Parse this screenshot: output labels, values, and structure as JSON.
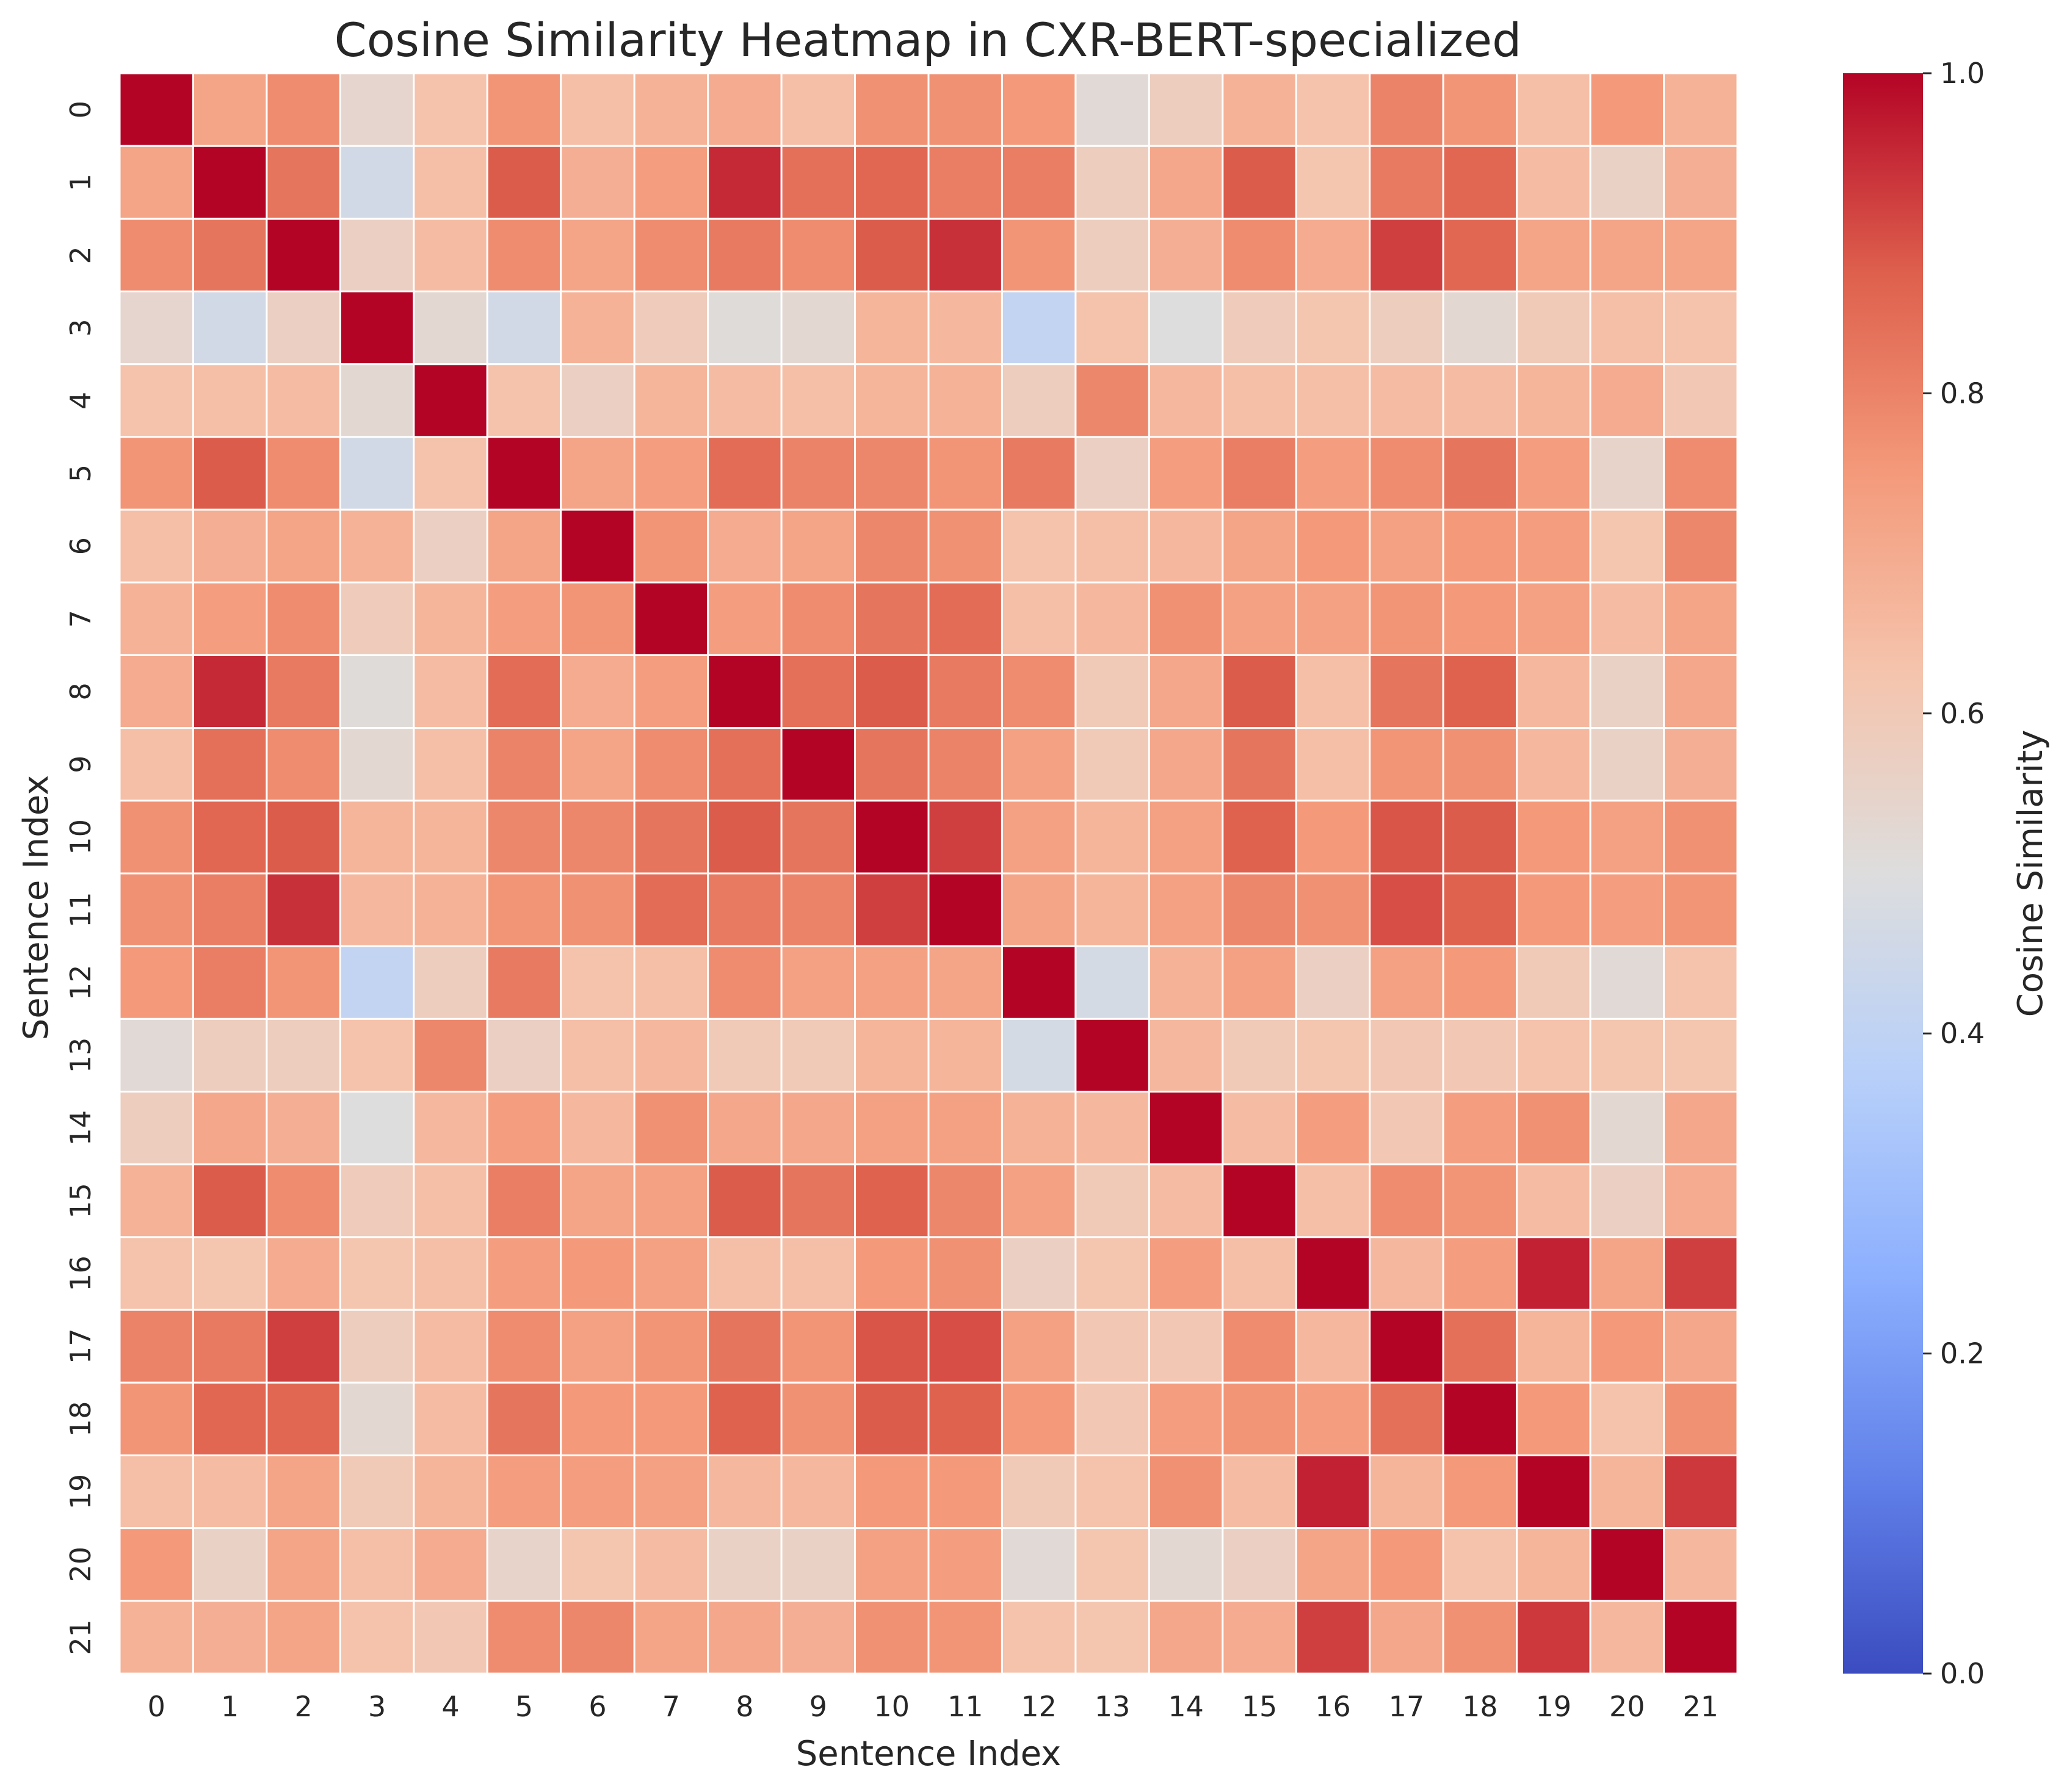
{
  "chart_data": {
    "type": "heatmap",
    "title": "Cosine Similarity Heatmap in CXR-BERT-specialized",
    "xlabel": "Sentence Index",
    "ylabel": "Sentence Index",
    "x_categories": [
      "0",
      "1",
      "2",
      "3",
      "4",
      "5",
      "6",
      "7",
      "8",
      "9",
      "10",
      "11",
      "12",
      "13",
      "14",
      "15",
      "16",
      "17",
      "18",
      "19",
      "20",
      "21"
    ],
    "y_categories": [
      "0",
      "1",
      "2",
      "3",
      "4",
      "5",
      "6",
      "7",
      "8",
      "9",
      "10",
      "11",
      "12",
      "13",
      "14",
      "15",
      "16",
      "17",
      "18",
      "19",
      "20",
      "21"
    ],
    "colorbar": {
      "label": "Cosine Similarity",
      "range": [
        0.0,
        1.0
      ],
      "ticks": [
        "0.0",
        "0.2",
        "0.4",
        "0.6",
        "0.8",
        "1.0"
      ],
      "colormap": "coolwarm"
    },
    "grid_line_color": "#ffffff",
    "values": [
      [
        1.0,
        0.72,
        0.78,
        0.54,
        0.63,
        0.76,
        0.64,
        0.68,
        0.7,
        0.64,
        0.77,
        0.77,
        0.75,
        0.52,
        0.58,
        0.68,
        0.63,
        0.8,
        0.76,
        0.64,
        0.75,
        0.68
      ],
      [
        0.72,
        1.0,
        0.83,
        0.46,
        0.64,
        0.88,
        0.69,
        0.74,
        0.95,
        0.84,
        0.86,
        0.81,
        0.81,
        0.58,
        0.71,
        0.88,
        0.62,
        0.82,
        0.86,
        0.65,
        0.56,
        0.69
      ],
      [
        0.78,
        0.83,
        1.0,
        0.57,
        0.65,
        0.78,
        0.72,
        0.78,
        0.82,
        0.78,
        0.88,
        0.94,
        0.76,
        0.58,
        0.69,
        0.78,
        0.7,
        0.92,
        0.86,
        0.72,
        0.72,
        0.72
      ],
      [
        0.54,
        0.46,
        0.57,
        1.0,
        0.53,
        0.46,
        0.68,
        0.59,
        0.51,
        0.53,
        0.67,
        0.66,
        0.41,
        0.63,
        0.5,
        0.59,
        0.62,
        0.58,
        0.53,
        0.6,
        0.64,
        0.63
      ],
      [
        0.63,
        0.64,
        0.65,
        0.53,
        1.0,
        0.63,
        0.57,
        0.67,
        0.65,
        0.64,
        0.67,
        0.68,
        0.58,
        0.79,
        0.66,
        0.64,
        0.64,
        0.65,
        0.65,
        0.67,
        0.7,
        0.61
      ],
      [
        0.76,
        0.88,
        0.78,
        0.46,
        0.63,
        1.0,
        0.72,
        0.74,
        0.85,
        0.8,
        0.79,
        0.76,
        0.82,
        0.57,
        0.74,
        0.81,
        0.74,
        0.78,
        0.83,
        0.74,
        0.55,
        0.78
      ],
      [
        0.64,
        0.69,
        0.72,
        0.68,
        0.57,
        0.72,
        1.0,
        0.76,
        0.7,
        0.72,
        0.79,
        0.77,
        0.63,
        0.64,
        0.66,
        0.72,
        0.75,
        0.73,
        0.75,
        0.74,
        0.62,
        0.79
      ],
      [
        0.68,
        0.74,
        0.78,
        0.59,
        0.67,
        0.74,
        0.76,
        1.0,
        0.74,
        0.78,
        0.83,
        0.85,
        0.64,
        0.66,
        0.77,
        0.73,
        0.73,
        0.76,
        0.75,
        0.73,
        0.65,
        0.72
      ],
      [
        0.7,
        0.95,
        0.82,
        0.51,
        0.65,
        0.85,
        0.7,
        0.74,
        1.0,
        0.84,
        0.88,
        0.82,
        0.78,
        0.6,
        0.71,
        0.88,
        0.64,
        0.83,
        0.87,
        0.66,
        0.56,
        0.71
      ],
      [
        0.64,
        0.84,
        0.78,
        0.53,
        0.64,
        0.8,
        0.72,
        0.78,
        0.84,
        1.0,
        0.83,
        0.8,
        0.73,
        0.6,
        0.71,
        0.83,
        0.64,
        0.76,
        0.77,
        0.66,
        0.56,
        0.69
      ],
      [
        0.77,
        0.86,
        0.88,
        0.67,
        0.67,
        0.79,
        0.79,
        0.83,
        0.88,
        0.83,
        1.0,
        0.92,
        0.73,
        0.67,
        0.73,
        0.87,
        0.75,
        0.89,
        0.88,
        0.75,
        0.73,
        0.77
      ],
      [
        0.77,
        0.81,
        0.94,
        0.66,
        0.68,
        0.76,
        0.77,
        0.85,
        0.82,
        0.8,
        0.92,
        1.0,
        0.72,
        0.67,
        0.73,
        0.79,
        0.77,
        0.9,
        0.87,
        0.75,
        0.74,
        0.76
      ],
      [
        0.75,
        0.81,
        0.76,
        0.41,
        0.58,
        0.82,
        0.63,
        0.64,
        0.78,
        0.73,
        0.73,
        0.72,
        1.0,
        0.47,
        0.68,
        0.73,
        0.57,
        0.73,
        0.75,
        0.6,
        0.52,
        0.63
      ],
      [
        0.52,
        0.58,
        0.58,
        0.63,
        0.79,
        0.57,
        0.64,
        0.66,
        0.6,
        0.6,
        0.67,
        0.67,
        0.47,
        1.0,
        0.66,
        0.6,
        0.62,
        0.61,
        0.61,
        0.63,
        0.62,
        0.62
      ],
      [
        0.58,
        0.71,
        0.69,
        0.5,
        0.66,
        0.74,
        0.66,
        0.77,
        0.71,
        0.71,
        0.73,
        0.73,
        0.68,
        0.66,
        1.0,
        0.65,
        0.74,
        0.61,
        0.74,
        0.77,
        0.53,
        0.71
      ],
      [
        0.68,
        0.88,
        0.78,
        0.59,
        0.64,
        0.81,
        0.72,
        0.73,
        0.88,
        0.83,
        0.87,
        0.79,
        0.73,
        0.6,
        0.65,
        1.0,
        0.64,
        0.78,
        0.76,
        0.65,
        0.57,
        0.7
      ],
      [
        0.63,
        0.62,
        0.7,
        0.62,
        0.64,
        0.74,
        0.75,
        0.73,
        0.64,
        0.64,
        0.75,
        0.77,
        0.57,
        0.62,
        0.74,
        0.64,
        1.0,
        0.66,
        0.74,
        0.96,
        0.72,
        0.92
      ],
      [
        0.8,
        0.82,
        0.92,
        0.58,
        0.65,
        0.78,
        0.73,
        0.76,
        0.83,
        0.76,
        0.89,
        0.9,
        0.73,
        0.61,
        0.61,
        0.78,
        0.66,
        1.0,
        0.84,
        0.67,
        0.75,
        0.71
      ],
      [
        0.76,
        0.86,
        0.86,
        0.53,
        0.65,
        0.83,
        0.75,
        0.75,
        0.87,
        0.77,
        0.88,
        0.87,
        0.75,
        0.61,
        0.74,
        0.76,
        0.74,
        0.84,
        1.0,
        0.75,
        0.63,
        0.77
      ],
      [
        0.64,
        0.65,
        0.72,
        0.6,
        0.67,
        0.74,
        0.74,
        0.73,
        0.66,
        0.66,
        0.75,
        0.75,
        0.6,
        0.63,
        0.77,
        0.65,
        0.96,
        0.67,
        0.75,
        1.0,
        0.67,
        0.93
      ],
      [
        0.75,
        0.56,
        0.72,
        0.64,
        0.7,
        0.55,
        0.62,
        0.65,
        0.56,
        0.56,
        0.73,
        0.74,
        0.52,
        0.62,
        0.53,
        0.57,
        0.72,
        0.75,
        0.63,
        0.67,
        1.0,
        0.66
      ],
      [
        0.68,
        0.69,
        0.72,
        0.63,
        0.61,
        0.78,
        0.79,
        0.72,
        0.71,
        0.69,
        0.77,
        0.76,
        0.63,
        0.62,
        0.71,
        0.7,
        0.92,
        0.71,
        0.77,
        0.93,
        0.66,
        1.0
      ]
    ]
  }
}
